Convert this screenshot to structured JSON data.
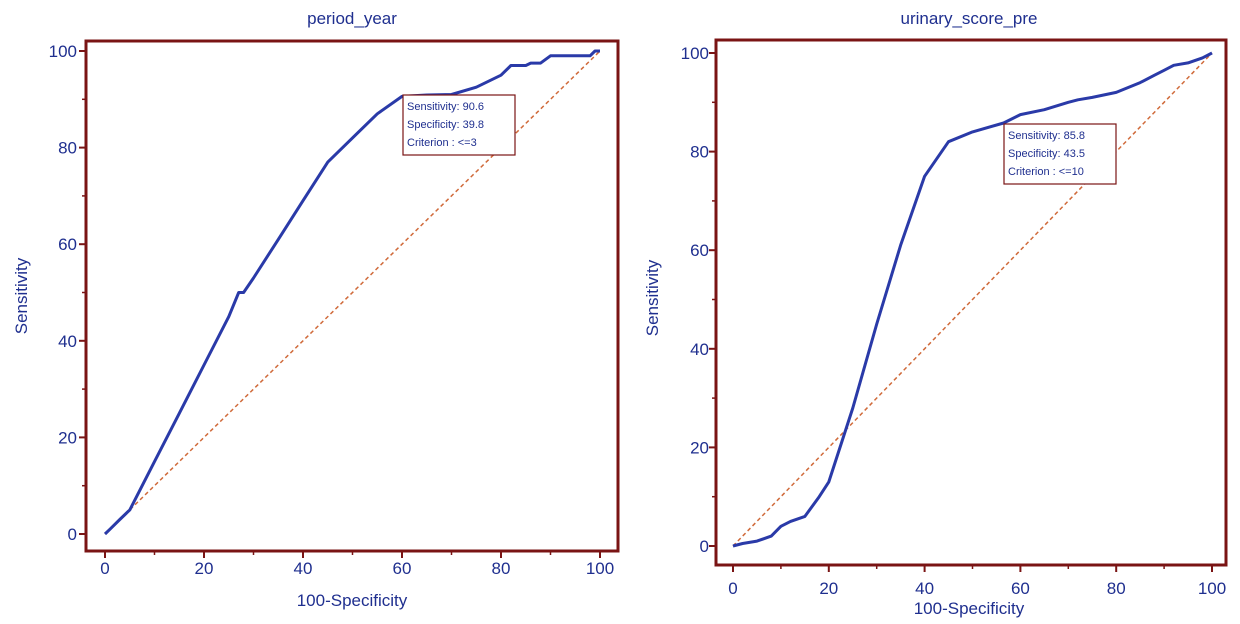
{
  "chart_data": [
    {
      "type": "line",
      "title": "period_year",
      "xlabel": "100-Specificity",
      "ylabel": "Sensitivity",
      "xlim": [
        0,
        100
      ],
      "ylim": [
        0,
        100
      ],
      "xticks": [
        "0",
        "20",
        "40",
        "60",
        "80",
        "100"
      ],
      "yticks": [
        "0",
        "20",
        "40",
        "60",
        "80",
        "100"
      ],
      "series": [
        {
          "x": [
            0,
            1,
            3,
            5,
            10,
            15,
            20,
            25,
            27,
            28,
            30,
            35,
            40,
            45,
            50,
            55,
            60,
            65,
            70,
            75,
            80,
            82,
            85,
            86,
            88,
            90,
            95,
            98,
            99,
            100
          ],
          "y": [
            0,
            1,
            3,
            5,
            15,
            25,
            35,
            45,
            50,
            50,
            53,
            61,
            69,
            77,
            82,
            87,
            90.6,
            90.9,
            91,
            92.5,
            95,
            97,
            97,
            97.5,
            97.5,
            99,
            99,
            99,
            100,
            100
          ]
        }
      ],
      "reference_line": [
        [
          0,
          0
        ],
        [
          100,
          100
        ]
      ],
      "annotation": {
        "point": [
          60.2,
          90.6
        ],
        "lines": [
          "Sensitivity: 90.6",
          "Specificity: 39.8",
          "Criterion : <=3"
        ]
      },
      "colors": {
        "curve": "#2a3aa8",
        "reference": "#d06a3a",
        "frame": "#7a1414",
        "text": "#1f2f8f"
      }
    },
    {
      "type": "line",
      "title": "urinary_score_pre",
      "xlabel": "100-Specificity",
      "ylabel": "Sensitivity",
      "xlim": [
        0,
        100
      ],
      "ylim": [
        0,
        100
      ],
      "xticks": [
        "0",
        "20",
        "40",
        "60",
        "80",
        "100"
      ],
      "yticks": [
        "0",
        "20",
        "40",
        "60",
        "80",
        "100"
      ],
      "series": [
        {
          "x": [
            0,
            2,
            5,
            8,
            10,
            12,
            15,
            18,
            20,
            25,
            30,
            35,
            40,
            45,
            50,
            56.5,
            60,
            65,
            70,
            72,
            75,
            80,
            85,
            88,
            90,
            92,
            95,
            98,
            100
          ],
          "y": [
            0,
            0.5,
            1,
            2,
            4,
            5,
            6,
            10,
            13,
            28,
            45,
            61,
            75,
            82,
            84,
            85.8,
            87.5,
            88.5,
            90,
            90.5,
            91,
            92,
            94,
            95.5,
            96.5,
            97.5,
            98,
            99,
            100
          ]
        }
      ],
      "reference_line": [
        [
          0,
          0
        ],
        [
          100,
          100
        ]
      ],
      "annotation": {
        "point": [
          56.5,
          85.8
        ],
        "lines": [
          "Sensitivity: 85.8",
          "Specificity: 43.5",
          "Criterion : <=10"
        ]
      },
      "colors": {
        "curve": "#2a3aa8",
        "reference": "#d06a3a",
        "frame": "#7a1414",
        "text": "#1f2f8f"
      }
    }
  ]
}
